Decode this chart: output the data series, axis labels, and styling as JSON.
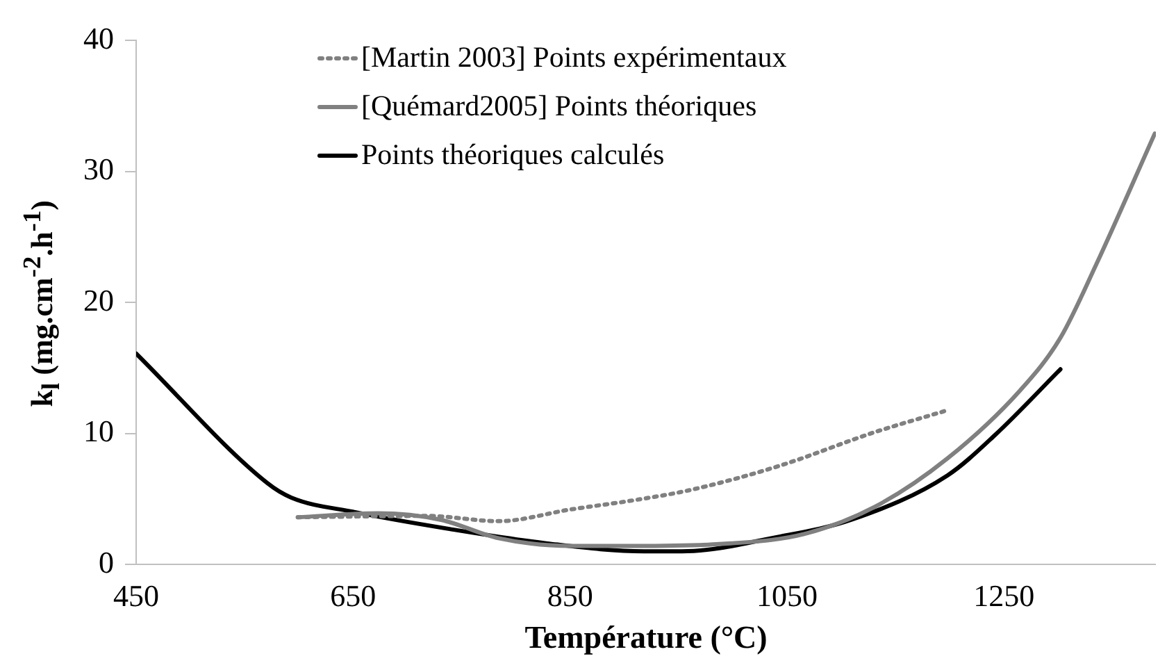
{
  "chart_data": {
    "type": "line",
    "xlabel": "Température (°C)",
    "ylabel": "k$_{l}$ (mg.cm$^{-2}$.h$^{-1}$)",
    "xlim": [
      450,
      1390
    ],
    "xticks": [
      450,
      650,
      850,
      1050,
      1250
    ],
    "ylim": [
      0,
      40
    ],
    "yticks": [
      0,
      10,
      20,
      30,
      40
    ],
    "grid": false,
    "legend": "top",
    "marker": "none",
    "series": [
      {
        "name": "[Martin 2003] Points expérimentaux",
        "color": "#808080",
        "line_style": "dotted",
        "x": [
          599,
          718,
          784,
          851,
          909,
          962,
          1042,
          1131,
          1195
        ],
        "values": [
          3.6,
          3.7,
          3.3,
          4.2,
          4.9,
          5.7,
          7.5,
          10.1,
          11.7
        ]
      },
      {
        "name": "[Quémard2005] Points théoriques",
        "color": "#808080",
        "line_style": "solid",
        "x": [
          599,
          673,
          731,
          784,
          851,
          909,
          998,
          1065,
          1131,
          1198,
          1265,
          1302,
          1335,
          1389
        ],
        "values": [
          3.6,
          3.9,
          3.4,
          2.0,
          1.4,
          1.4,
          1.6,
          2.3,
          4.4,
          8.1,
          13.3,
          17.3,
          22.9,
          32.9
        ]
      },
      {
        "name": "Points théoriques calculés",
        "color": "#000000",
        "line_style": "solid",
        "x": [
          450,
          571,
          593,
          651,
          739,
          829,
          918,
          953,
          1042,
          1109,
          1198,
          1242,
          1302
        ],
        "values": [
          16.1,
          6.2,
          5.1,
          4.0,
          2.7,
          1.6,
          1.0,
          1.0,
          2.1,
          3.4,
          6.8,
          9.9,
          14.9
        ]
      }
    ]
  }
}
